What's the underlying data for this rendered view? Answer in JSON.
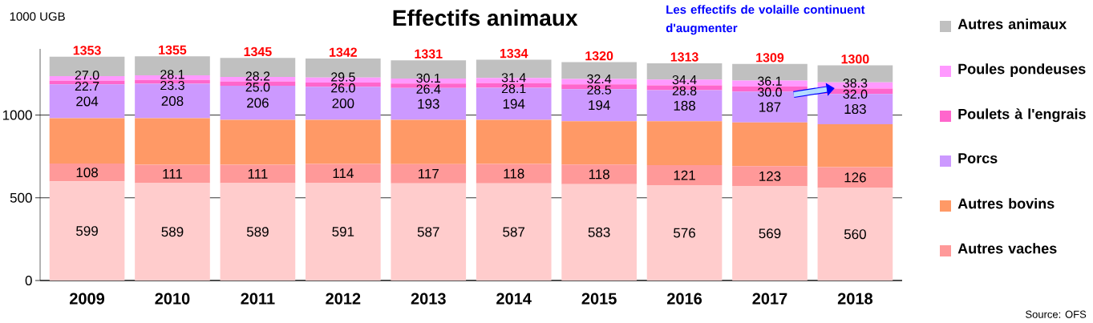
{
  "chart_data": {
    "type": "bar",
    "stacked": true,
    "title": "Effectifs animaux",
    "ylabel": "1000 UGB",
    "categories": [
      "2009",
      "2010",
      "2011",
      "2012",
      "2013",
      "2014",
      "2015",
      "2016",
      "2017",
      "2018"
    ],
    "series": [
      {
        "color": "#ffcccc",
        "values": [
          599,
          589,
          589,
          591,
          587,
          587,
          583,
          576,
          569,
          560
        ],
        "value_labels": [
          "599",
          "589",
          "589",
          "591",
          "587",
          "587",
          "583",
          "576",
          "569",
          "560"
        ]
      },
      {
        "name": "Autres vaches",
        "color": "#ff9999",
        "values": [
          108,
          111,
          111,
          114,
          117,
          118,
          118,
          121,
          123,
          126
        ],
        "value_labels": [
          "108",
          "111",
          "111",
          "114",
          "117",
          "118",
          "118",
          "121",
          "123",
          "126"
        ]
      },
      {
        "name": "Autres bovins",
        "color": "#ff9966",
        "values": [
          274,
          281,
          271,
          266,
          267,
          266,
          262,
          266,
          263,
          259
        ]
      },
      {
        "name": "Porcs",
        "color": "#cc99ff",
        "values": [
          204,
          208,
          206,
          200,
          193,
          194,
          194,
          188,
          187,
          183
        ],
        "value_labels": [
          "204",
          "208",
          "206",
          "200",
          "193",
          "194",
          "194",
          "188",
          "187",
          "183"
        ]
      },
      {
        "name": "Poulets à l'engrais",
        "color": "#ff66cc",
        "values": [
          22.7,
          23.3,
          25.0,
          26.0,
          26.4,
          28.1,
          28.5,
          28.8,
          30.0,
          32.0
        ],
        "value_labels": [
          "22.7",
          "23.3",
          "25.0",
          "26.0",
          "26.4",
          "28.1",
          "28.5",
          "28.8",
          "30.0",
          "32.0"
        ]
      },
      {
        "name": "Poules pondeuses",
        "color": "#ff99ff",
        "values": [
          27.0,
          28.1,
          28.2,
          29.5,
          30.1,
          31.4,
          32.4,
          34.4,
          36.1,
          38.3
        ],
        "value_labels": [
          "27.0",
          "28.1",
          "28.2",
          "29.5",
          "30.1",
          "31.4",
          "32.4",
          "34.4",
          "36.1",
          "38.3"
        ]
      },
      {
        "name": "Autres animaux",
        "color": "#c0c0c0",
        "values": [
          118,
          115,
          115,
          115,
          111,
          110,
          102,
          99,
          101,
          102
        ]
      }
    ],
    "totals": [
      "1353",
      "1355",
      "1345",
      "1342",
      "1331",
      "1334",
      "1320",
      "1313",
      "1309",
      "1300"
    ],
    "ylim": [
      0,
      1400
    ],
    "yticks": [
      0,
      500,
      1000
    ],
    "grid": "y",
    "legend": "right",
    "annotations": [
      "Les effectifs de volaille continuent d'augmenter",
      "Source: OFS"
    ]
  }
}
